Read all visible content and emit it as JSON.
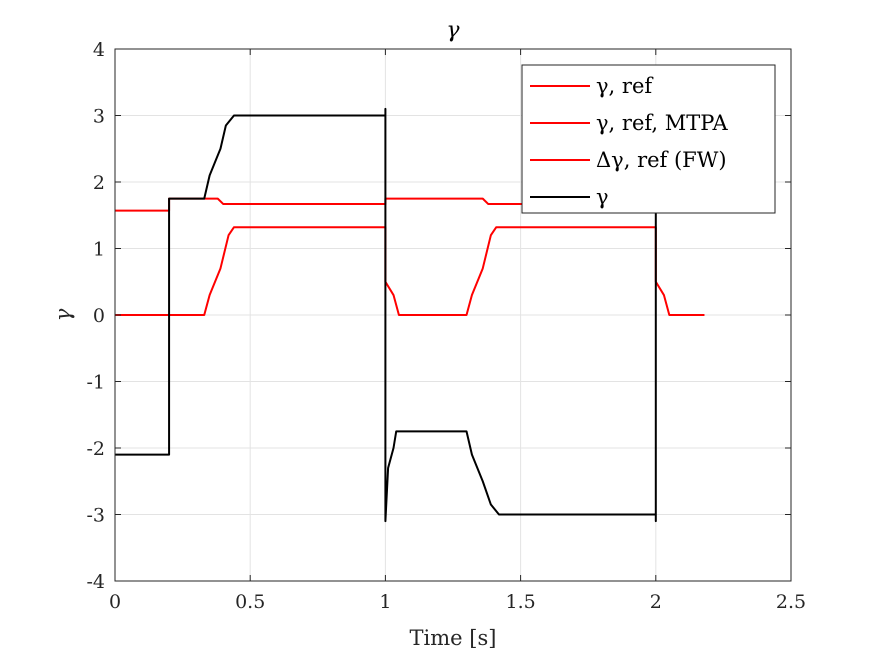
{
  "chart_data": {
    "type": "line",
    "title": "γ",
    "xlabel": "Time [s]",
    "ylabel": "γ",
    "xlim": [
      0,
      2.5
    ],
    "ylim": [
      -4,
      4
    ],
    "x_ticks": [
      0,
      0.5,
      1,
      1.5,
      2,
      2.5
    ],
    "x_tick_labels": [
      "0",
      "0.5",
      "1",
      "1.5",
      "2",
      "2.5"
    ],
    "y_ticks": [
      -4,
      -3,
      -2,
      -1,
      0,
      1,
      2,
      3,
      4
    ],
    "y_tick_labels": [
      "-4",
      "-3",
      "-2",
      "-1",
      "0",
      "1",
      "2",
      "3",
      "4"
    ],
    "grid": true,
    "legend_position": "top-right",
    "series": [
      {
        "name": "γ, ref",
        "color": "#ff0000",
        "points": [
          [
            0,
            1.57
          ],
          [
            0.2,
            1.57
          ],
          [
            0.2,
            1.75
          ],
          [
            0.38,
            1.75
          ],
          [
            0.4,
            1.67
          ],
          [
            1.0,
            1.67
          ],
          [
            1.0,
            1.75
          ],
          [
            1.36,
            1.75
          ],
          [
            1.38,
            1.67
          ],
          [
            2.0,
            1.67
          ],
          [
            2.0,
            1.75
          ],
          [
            2.05,
            1.75
          ]
        ]
      },
      {
        "name": "γ, ref, MTPA",
        "color": "#ff0000",
        "points": [
          [
            0,
            0
          ],
          [
            0.33,
            0
          ],
          [
            0.35,
            0.3
          ],
          [
            0.38,
            0.6
          ],
          [
            0.39,
            0.7
          ],
          [
            0.42,
            1.2
          ],
          [
            0.44,
            1.32
          ],
          [
            1.0,
            1.32
          ],
          [
            1.0,
            0.5
          ],
          [
            1.03,
            0.3
          ],
          [
            1.05,
            0
          ],
          [
            1.3,
            0
          ],
          [
            1.32,
            0.3
          ],
          [
            1.35,
            0.6
          ],
          [
            1.36,
            0.7
          ],
          [
            1.39,
            1.2
          ],
          [
            1.41,
            1.32
          ],
          [
            2.0,
            1.32
          ],
          [
            2.0,
            0.5
          ],
          [
            2.03,
            0.3
          ],
          [
            2.05,
            0
          ],
          [
            2.18,
            0
          ]
        ]
      },
      {
        "name": "Δγ, ref (FW)",
        "color": "#ff0000",
        "points": []
      },
      {
        "name": "γ",
        "color": "#000000",
        "points": [
          [
            0,
            -2.1
          ],
          [
            0.2,
            -2.1
          ],
          [
            0.2,
            1.75
          ],
          [
            0.33,
            1.75
          ],
          [
            0.35,
            2.1
          ],
          [
            0.38,
            2.4
          ],
          [
            0.39,
            2.5
          ],
          [
            0.41,
            2.85
          ],
          [
            0.44,
            3.0
          ],
          [
            1.0,
            3.0
          ],
          [
            1.0,
            3.1
          ],
          [
            1.0,
            -3.1
          ],
          [
            1.01,
            -2.3
          ],
          [
            1.03,
            -2.0
          ],
          [
            1.04,
            -1.75
          ],
          [
            1.3,
            -1.75
          ],
          [
            1.32,
            -2.1
          ],
          [
            1.35,
            -2.4
          ],
          [
            1.36,
            -2.5
          ],
          [
            1.39,
            -2.85
          ],
          [
            1.42,
            -3.0
          ],
          [
            2.0,
            -3.0
          ],
          [
            2.0,
            -3.1
          ],
          [
            2.0,
            1.75
          ]
        ]
      }
    ]
  }
}
